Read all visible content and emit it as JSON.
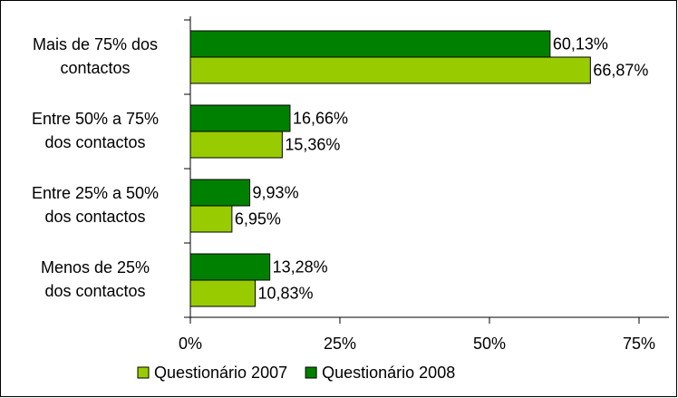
{
  "chart_data": {
    "type": "hbar",
    "categories": [
      [
        "Mais de 75% dos",
        "contactos"
      ],
      [
        "Entre 50% a 75%",
        "dos contactos"
      ],
      [
        "Entre 25% a 50%",
        "dos contactos"
      ],
      [
        "Menos de 25%",
        "dos contactos"
      ]
    ],
    "series": [
      {
        "name": "Questionário 2007",
        "color": "#99cc00",
        "values": [
          66.87,
          15.36,
          6.95,
          10.83
        ],
        "value_labels": [
          "66,87%",
          "15,36%",
          "6,95%",
          "10,83%"
        ]
      },
      {
        "name": "Questionário 2008",
        "color": "#008000",
        "values": [
          60.13,
          16.66,
          9.93,
          13.28
        ],
        "value_labels": [
          "60,13%",
          "16,66%",
          "9,93%",
          "13,28%"
        ]
      }
    ],
    "xlim": [
      0,
      80
    ],
    "xticks": [
      {
        "value": 0,
        "label": "0%"
      },
      {
        "value": 25,
        "label": "25%"
      },
      {
        "value": 50,
        "label": "50%"
      },
      {
        "value": 75,
        "label": "75%"
      }
    ],
    "legend": "bottom"
  }
}
